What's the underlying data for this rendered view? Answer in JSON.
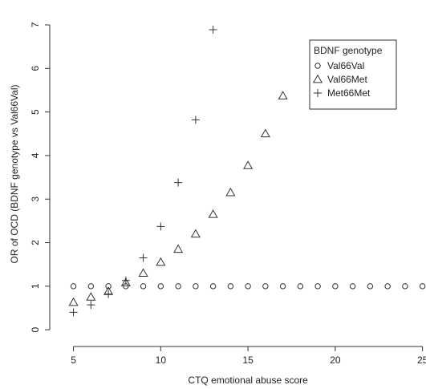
{
  "chart_data": {
    "type": "scatter",
    "xlabel": "CTQ emotional abuse score",
    "ylabel": "OR of OCD (BDNF genotype vs Val66Val)",
    "xlim": [
      4.1,
      25.2
    ],
    "ylim": [
      -0.2,
      7.35
    ],
    "xticks": [
      5,
      10,
      15,
      20,
      25
    ],
    "yticks": [
      0,
      1,
      2,
      3,
      4,
      5,
      6,
      7
    ],
    "grid": false,
    "legend": {
      "title": "BDNF genotype",
      "position": "top-right"
    },
    "series": [
      {
        "name": "Val66Val",
        "marker": "circle",
        "x": [
          5,
          6,
          7,
          8,
          9,
          10,
          11,
          12,
          13,
          14,
          15,
          16,
          17,
          18,
          19,
          20,
          21,
          22,
          23,
          24,
          25
        ],
        "y": [
          1,
          1,
          1,
          1,
          1,
          1,
          1,
          1,
          1,
          1,
          1,
          1,
          1,
          1,
          1,
          1,
          1,
          1,
          1,
          1,
          1
        ]
      },
      {
        "name": "Val66Met",
        "marker": "triangle",
        "x": [
          5,
          6,
          7,
          8,
          9,
          10,
          11,
          12,
          13,
          14,
          15,
          16,
          17
        ],
        "y": [
          0.63,
          0.75,
          0.88,
          1.08,
          1.3,
          1.55,
          1.85,
          2.2,
          2.65,
          3.15,
          3.77,
          4.5,
          5.37
        ]
      },
      {
        "name": "Met66Met",
        "marker": "plus",
        "x": [
          5,
          6,
          7,
          8,
          9,
          10,
          11,
          12,
          13
        ],
        "y": [
          0.4,
          0.57,
          0.82,
          1.13,
          1.65,
          2.37,
          3.38,
          4.82,
          6.89
        ]
      }
    ]
  }
}
